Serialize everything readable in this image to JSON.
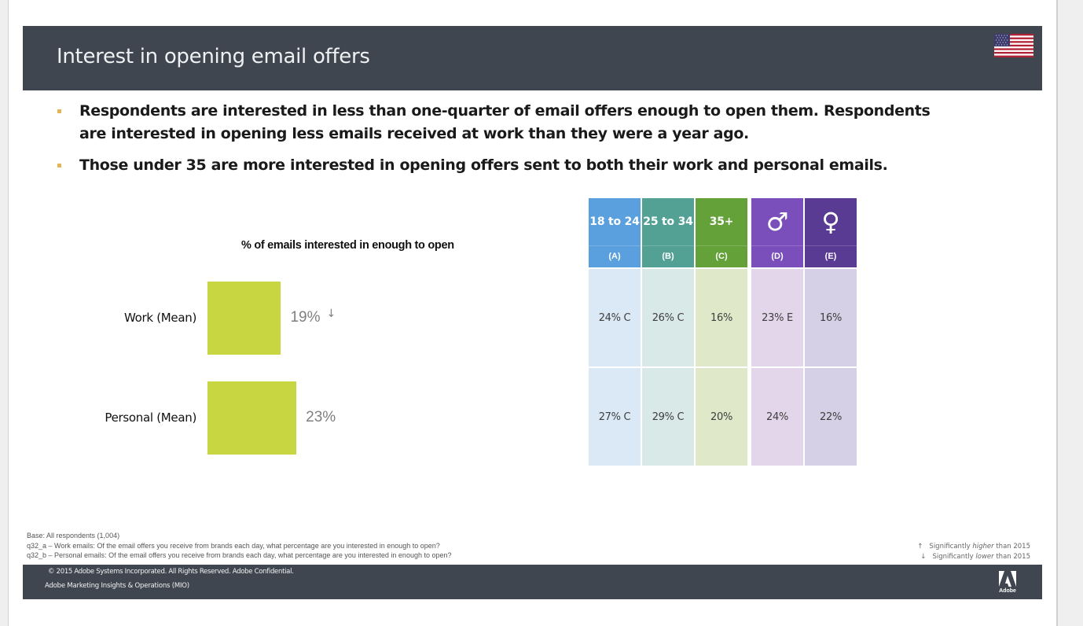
{
  "slide": {
    "title": "Interest in opening email offers",
    "flag_icon": "us-flag-icon",
    "bullets": [
      "Respondents are interested in less than one-quarter of email offers enough to open them. Respondents are interested in opening less emails received at work than they were a year ago.",
      "Those under 35 are more interested in opening offers sent to both their work and personal emails."
    ]
  },
  "chart_data": {
    "type": "bar",
    "orientation": "horizontal",
    "title": "% of emails interested in enough to open",
    "categories": [
      "Work (Mean)",
      "Personal (Mean)"
    ],
    "values": [
      19,
      23
    ],
    "value_labels": [
      "19%",
      "23%"
    ],
    "significance": [
      "lower",
      ""
    ],
    "significance_marks": [
      "↓",
      ""
    ],
    "unit": "%",
    "xlabel": "",
    "ylabel": "",
    "grid": false,
    "color": "#c8d641"
  },
  "table": {
    "type": "table",
    "columns": [
      {
        "label": "18 to 24",
        "code": "(A)",
        "head_color": "#5aa0df",
        "cell_color": "#dbe9f6"
      },
      {
        "label": "25 to 34",
        "code": "(B)",
        "head_color": "#53a095",
        "cell_color": "#d9e9e7"
      },
      {
        "label": "35+",
        "code": "(C)",
        "head_color": "#64a139",
        "cell_color": "#dfe9ca"
      },
      {
        "label": "♂",
        "code": "(D)",
        "head_color": "#7a4fbc",
        "cell_color": "#e3d5ea",
        "icon": "male-icon"
      },
      {
        "label": "♀",
        "code": "(E)",
        "head_color": "#5a3b93",
        "cell_color": "#d5d0e5",
        "icon": "female-icon"
      }
    ],
    "rows": [
      {
        "name": "Work (Mean)",
        "cells": [
          "24% C",
          "26% C",
          "16%",
          "23% E",
          "16%"
        ]
      },
      {
        "name": "Personal (Mean)",
        "cells": [
          "27% C",
          "29% C",
          "20%",
          "24%",
          "22%"
        ]
      }
    ]
  },
  "notes": {
    "base": "Base: All respondents  (1,004)",
    "q_a": "q32_a  – Work emails:  Of the email offers you receive from brands each day, what percentage  are you interested in enough to open?",
    "q_b": "q32_b  – Personal emails:  Of the email offers you receive from brands each day, what percentage  are you interested in enough to open?"
  },
  "legend": {
    "higher_arrow": "↑",
    "higher_prefix": "Significantly ",
    "higher_word": "higher",
    "higher_suffix": " than 2015",
    "lower_arrow": "↓",
    "lower_prefix": "Significantly ",
    "lower_word": "lower",
    "lower_suffix": " than 2015"
  },
  "footer": {
    "copyright": "© 2015 Adobe Systems Incorporated. All Rights Reserved. Adobe Confidential.",
    "department": "Adobe  Marketing  Insights  &  Operations  (MIO)",
    "logo_word": "Adobe"
  },
  "colors": {
    "title_bar": "#3f4650",
    "bullet_marker": "#e6b455",
    "bar": "#c8d641"
  }
}
